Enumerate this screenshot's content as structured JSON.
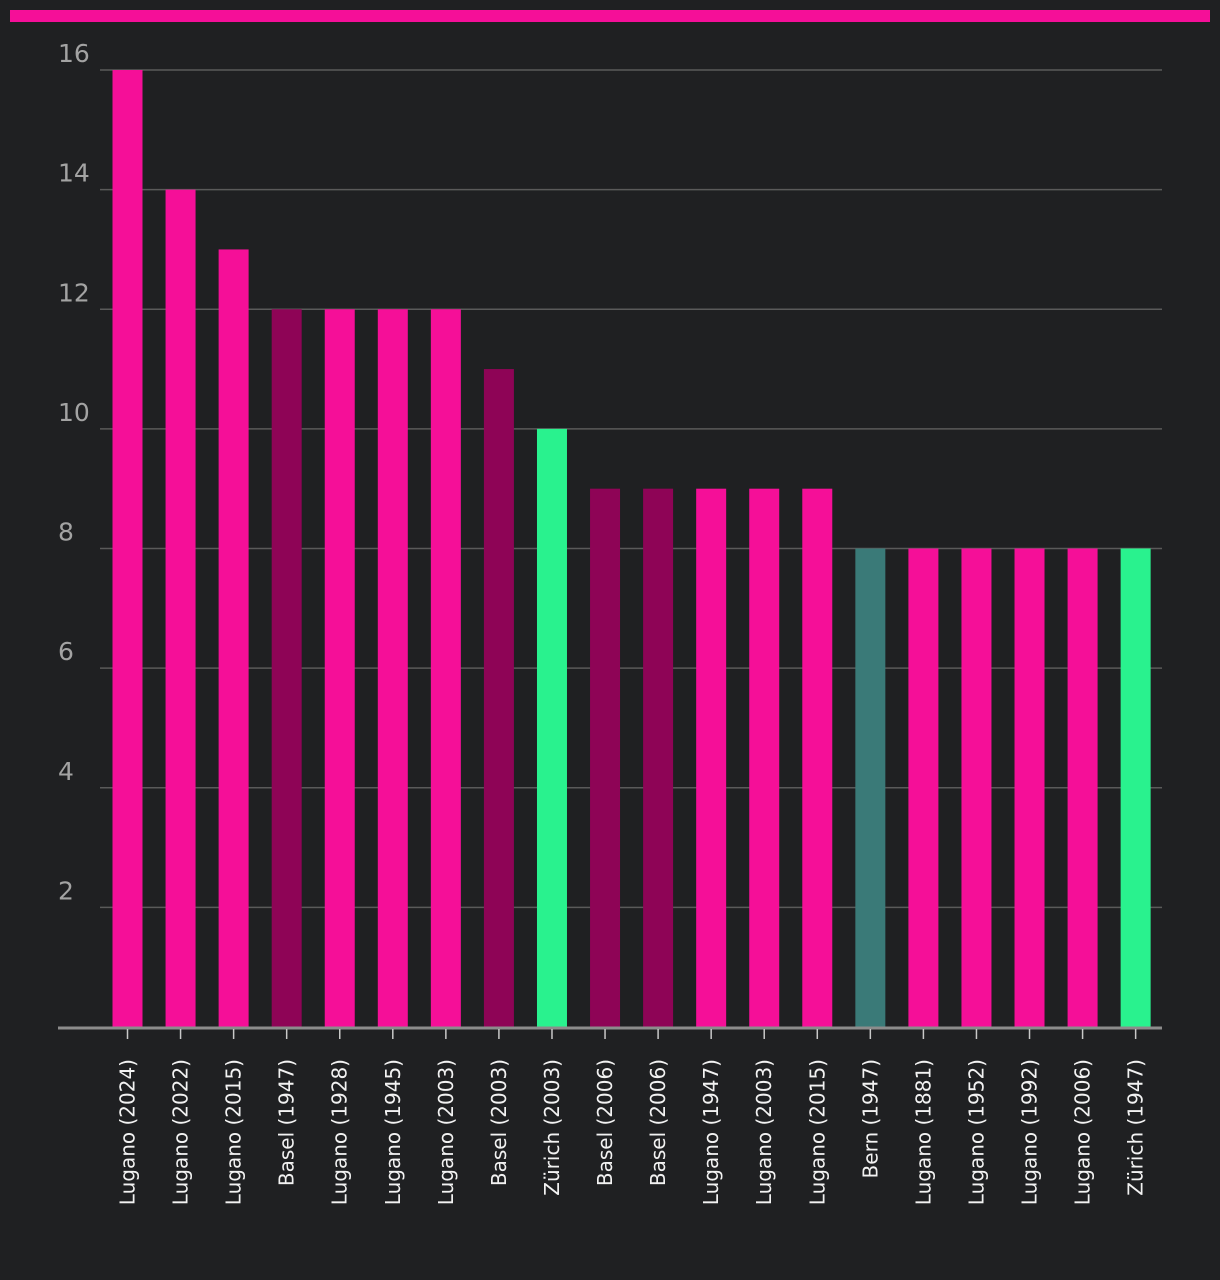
{
  "colors": {
    "background": "#1f2022",
    "accent": "#f50f98",
    "grid": "#5a5a5a",
    "axis": "#8c8c8c",
    "tick_text": "#a3a3a3",
    "label_text": "#f2f2f2"
  },
  "chart_data": {
    "type": "bar",
    "title": "",
    "xlabel": "",
    "ylabel": "",
    "ylim": [
      0,
      16
    ],
    "yticks": [
      2,
      4,
      6,
      8,
      10,
      12,
      14,
      16
    ],
    "grid": true,
    "categories": [
      "Lugano (2024)",
      "Lugano (2022)",
      "Lugano (2015)",
      "Basel (1947)",
      "Lugano (1928)",
      "Lugano (1945)",
      "Lugano (2003)",
      "Basel (2003)",
      "Zürich (2003)",
      "Basel (2006)",
      "Basel (2006)",
      "Lugano (1947)",
      "Lugano (2003)",
      "Lugano (2015)",
      "Bern (1947)",
      "Lugano (1881)",
      "Lugano (1952)",
      "Lugano (1992)",
      "Lugano (2006)",
      "Zürich (1947)"
    ],
    "values": [
      16,
      14,
      13,
      12,
      12,
      12,
      12,
      11,
      10,
      9,
      9,
      9,
      9,
      9,
      8,
      8,
      8,
      8,
      8,
      8
    ],
    "bar_colors": [
      "#f50f98",
      "#f50f98",
      "#f50f98",
      "#8e0456",
      "#f50f98",
      "#f50f98",
      "#f50f98",
      "#8e0456",
      "#29f28e",
      "#8e0456",
      "#8e0456",
      "#f50f98",
      "#f50f98",
      "#f50f98",
      "#3a7a78",
      "#f50f98",
      "#f50f98",
      "#f50f98",
      "#f50f98",
      "#29f28e"
    ]
  }
}
